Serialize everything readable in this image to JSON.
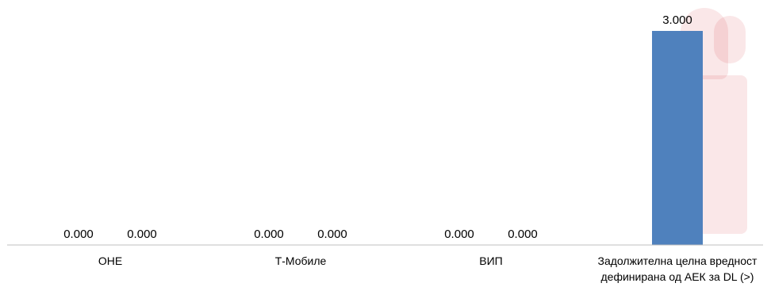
{
  "chart_data": {
    "type": "bar",
    "categories": [
      "ОНЕ",
      "Т-Мобиле",
      "ВИП",
      "Задолжителна целна вредност дефинирана од АЕК за DL (>)"
    ],
    "category_lines": [
      [
        "ОНЕ"
      ],
      [
        "Т-Мобиле"
      ],
      [
        "ВИП"
      ],
      [
        "Задолжителна целна вредност",
        "дефинирана од АЕК за DL (>)"
      ]
    ],
    "series": [
      {
        "values": [
          0.0,
          0.0,
          0.0,
          3.0
        ]
      },
      {
        "values": [
          0.0,
          0.0,
          0.0,
          null
        ]
      }
    ],
    "data_labels": [
      [
        "0.000",
        "0.000",
        "0.000",
        "3.000"
      ],
      [
        "0.000",
        "0.000",
        "0.000",
        ""
      ]
    ],
    "ylim": [
      0,
      3.0
    ],
    "bar_color": "#4f81bd",
    "axis_color": "#bfbfbf",
    "grid": false,
    "legend": "none",
    "title": "",
    "xlabel": "",
    "ylabel": ""
  }
}
